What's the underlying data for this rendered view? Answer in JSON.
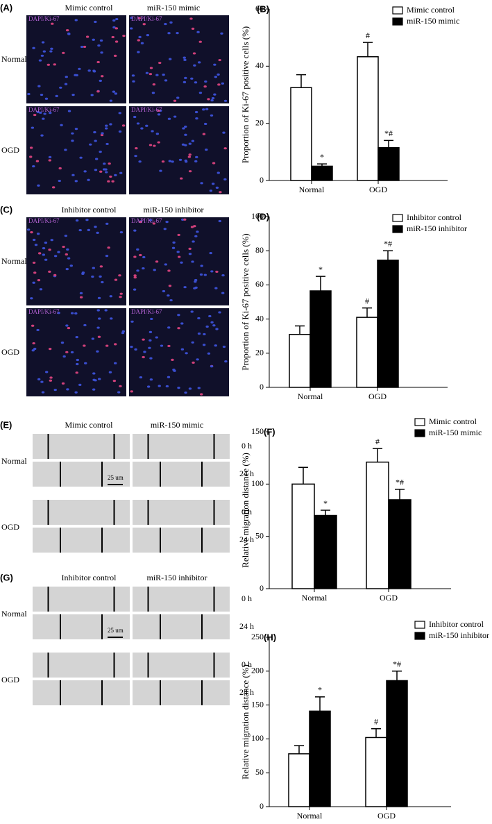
{
  "panels": [
    {
      "label": "(A)",
      "columns": [
        "Mimic control",
        "miR-150 mimic"
      ],
      "rows": [
        "Normal",
        "OGD"
      ],
      "stain": "DAPI/Ki-67"
    },
    {
      "label": "(C)",
      "columns": [
        "Inhibitor control",
        "miR-150 inhibitor"
      ],
      "rows": [
        "Normal",
        "OGD"
      ],
      "stain": "DAPI/Ki-67"
    },
    {
      "label": "(E)",
      "columns": [
        "Mimic control",
        "miR-150 mimic"
      ],
      "rows": [
        "Normal",
        "OGD"
      ],
      "times": [
        "0 h",
        "24 h"
      ],
      "scale": "25 um"
    },
    {
      "label": "(G)",
      "columns": [
        "Inhibitor control",
        "miR-150 inhibitor"
      ],
      "rows": [
        "Normal",
        "OGD"
      ],
      "times": [
        "0 h",
        "24 h"
      ],
      "scale": "25 um"
    }
  ],
  "chart_data": [
    {
      "type": "bar",
      "panel_label": "(B)",
      "y_label": "Proportion of Ki-67 positive cells (%)",
      "categories": [
        "Normal",
        "OGD"
      ],
      "series": [
        {
          "name": "Mimic control",
          "color": "#ffffff",
          "values": [
            32.5,
            43.3
          ],
          "errors": [
            4.5,
            5
          ],
          "significance": [
            null,
            "#"
          ]
        },
        {
          "name": "miR-150 mimic",
          "color": "#000000",
          "values": [
            5,
            11.5
          ],
          "errors": [
            0.8,
            2.5
          ],
          "significance": [
            "*",
            "*#"
          ]
        }
      ],
      "ylim": [
        0,
        60
      ],
      "yticks": [
        0,
        20,
        40,
        60
      ]
    },
    {
      "type": "bar",
      "panel_label": "(D)",
      "y_label": "Proportion of Ki-67 positive cells (%)",
      "categories": [
        "Normal",
        "OGD"
      ],
      "series": [
        {
          "name": "Inhibitor control",
          "color": "#ffffff",
          "values": [
            31,
            41
          ],
          "errors": [
            5,
            5.5
          ],
          "significance": [
            null,
            "#"
          ]
        },
        {
          "name": "miR-150 inhibitor",
          "color": "#000000",
          "values": [
            56.5,
            74.5
          ],
          "errors": [
            8.5,
            5.5
          ],
          "significance": [
            "*",
            "*#"
          ]
        }
      ],
      "ylim": [
        0,
        100
      ],
      "yticks": [
        0,
        20,
        40,
        60,
        80,
        100
      ]
    },
    {
      "type": "bar",
      "panel_label": "(F)",
      "y_label": "Relative migration distance (%)",
      "categories": [
        "Normal",
        "OGD"
      ],
      "series": [
        {
          "name": "Mimic control",
          "color": "#ffffff",
          "values": [
            100,
            121
          ],
          "errors": [
            16,
            13
          ],
          "significance": [
            null,
            "#"
          ]
        },
        {
          "name": "miR-150 mimic",
          "color": "#000000",
          "values": [
            70,
            85
          ],
          "errors": [
            5,
            10
          ],
          "significance": [
            "*",
            "*#"
          ]
        }
      ],
      "ylim": [
        0,
        150
      ],
      "yticks": [
        0,
        50,
        100,
        150
      ]
    },
    {
      "type": "bar",
      "panel_label": "(H)",
      "y_label": "Relative migration distance (%)",
      "categories": [
        "Normal",
        "OGD"
      ],
      "series": [
        {
          "name": "Inhibitor control",
          "color": "#ffffff",
          "values": [
            78,
            102
          ],
          "errors": [
            12,
            13
          ],
          "significance": [
            null,
            "#"
          ]
        },
        {
          "name": "miR-150 inhibitor",
          "color": "#000000",
          "values": [
            141,
            186
          ],
          "errors": [
            21,
            14
          ],
          "significance": [
            "*",
            "*#"
          ]
        }
      ],
      "ylim": [
        0,
        250
      ],
      "yticks": [
        0,
        50,
        100,
        150,
        200,
        250
      ]
    }
  ]
}
